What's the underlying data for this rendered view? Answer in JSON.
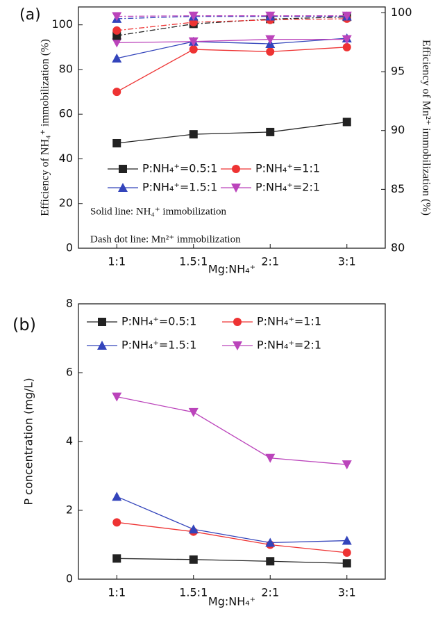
{
  "chart_data": [
    {
      "type": "line",
      "panel_label": "(a)",
      "ylabel": "Efficiency of NH₄⁺ immobilization (%)",
      "y2label": "Efficiency of Mn²⁺ immobilization (%)",
      "xlabel": "Mg:NH₄⁺",
      "categories": [
        "1:1",
        "1.5:1",
        "2:1",
        "3:1"
      ],
      "ylim": [
        0,
        108
      ],
      "yticks": [
        0,
        20,
        40,
        60,
        80,
        100
      ],
      "y2lim": [
        80,
        100.5
      ],
      "y2ticks": [
        80,
        85,
        90,
        95,
        100
      ],
      "annotations": [
        "Solid line: NH₄⁺ immobilization",
        "Dash dot line: Mn²⁺ immobilization"
      ],
      "series": [
        {
          "name": "P:NH₄⁺=0.5:1",
          "color": "#222222",
          "marker": "square",
          "values": [
            47,
            51,
            52,
            56.5
          ]
        },
        {
          "name": "P:NH₄⁺=1:1",
          "color": "#ee3333",
          "marker": "circle",
          "values": [
            70,
            89,
            88,
            90
          ]
        },
        {
          "name": "P:NH₄⁺=1.5:1",
          "color": "#3344bb",
          "marker": "triangle",
          "values": [
            85,
            92.5,
            91.5,
            94
          ]
        },
        {
          "name": "P:NH₄⁺=2:1",
          "color": "#bb44bb",
          "marker": "triangle-down",
          "values": [
            92,
            92.5,
            93.5,
            93.5
          ]
        },
        {
          "color": "#222222",
          "marker": "square",
          "axis": "y2",
          "dash": "dashdot",
          "values": [
            98.06,
            99.06,
            99.47,
            99.65
          ]
        },
        {
          "color": "#ee3333",
          "marker": "circle",
          "axis": "y2",
          "dash": "dashdot",
          "values": [
            98.5,
            99.2,
            99.4,
            99.5
          ]
        },
        {
          "color": "#3344bb",
          "marker": "triangle",
          "axis": "y2",
          "dash": "dashdot",
          "values": [
            99.5,
            99.7,
            99.7,
            99.7
          ]
        },
        {
          "color": "#bb44bb",
          "marker": "triangle-down",
          "axis": "y2",
          "dash": "dashdot",
          "values": [
            99.7,
            99.75,
            99.75,
            99.75
          ]
        }
      ]
    },
    {
      "type": "line",
      "panel_label": "(b)",
      "ylabel": "P concentration (mg/L)",
      "xlabel": "Mg:NH₄⁺",
      "categories": [
        "1:1",
        "1.5:1",
        "2:1",
        "3:1"
      ],
      "ylim": [
        0,
        8
      ],
      "yticks": [
        0,
        2,
        4,
        6,
        8
      ],
      "series": [
        {
          "name": "P:NH₄⁺=0.5:1",
          "color": "#222222",
          "marker": "square",
          "values": [
            0.6,
            0.57,
            0.52,
            0.46
          ]
        },
        {
          "name": "P:NH₄⁺=1:1",
          "color": "#ee3333",
          "marker": "circle",
          "values": [
            1.65,
            1.38,
            1.0,
            0.77
          ]
        },
        {
          "name": "P:NH₄⁺=1.5:1",
          "color": "#3344bb",
          "marker": "triangle",
          "values": [
            2.4,
            1.45,
            1.06,
            1.12
          ]
        },
        {
          "name": "P:NH₄⁺=2:1",
          "color": "#bb44bb",
          "marker": "triangle-down",
          "values": [
            5.3,
            4.85,
            3.52,
            3.33
          ]
        }
      ]
    }
  ]
}
